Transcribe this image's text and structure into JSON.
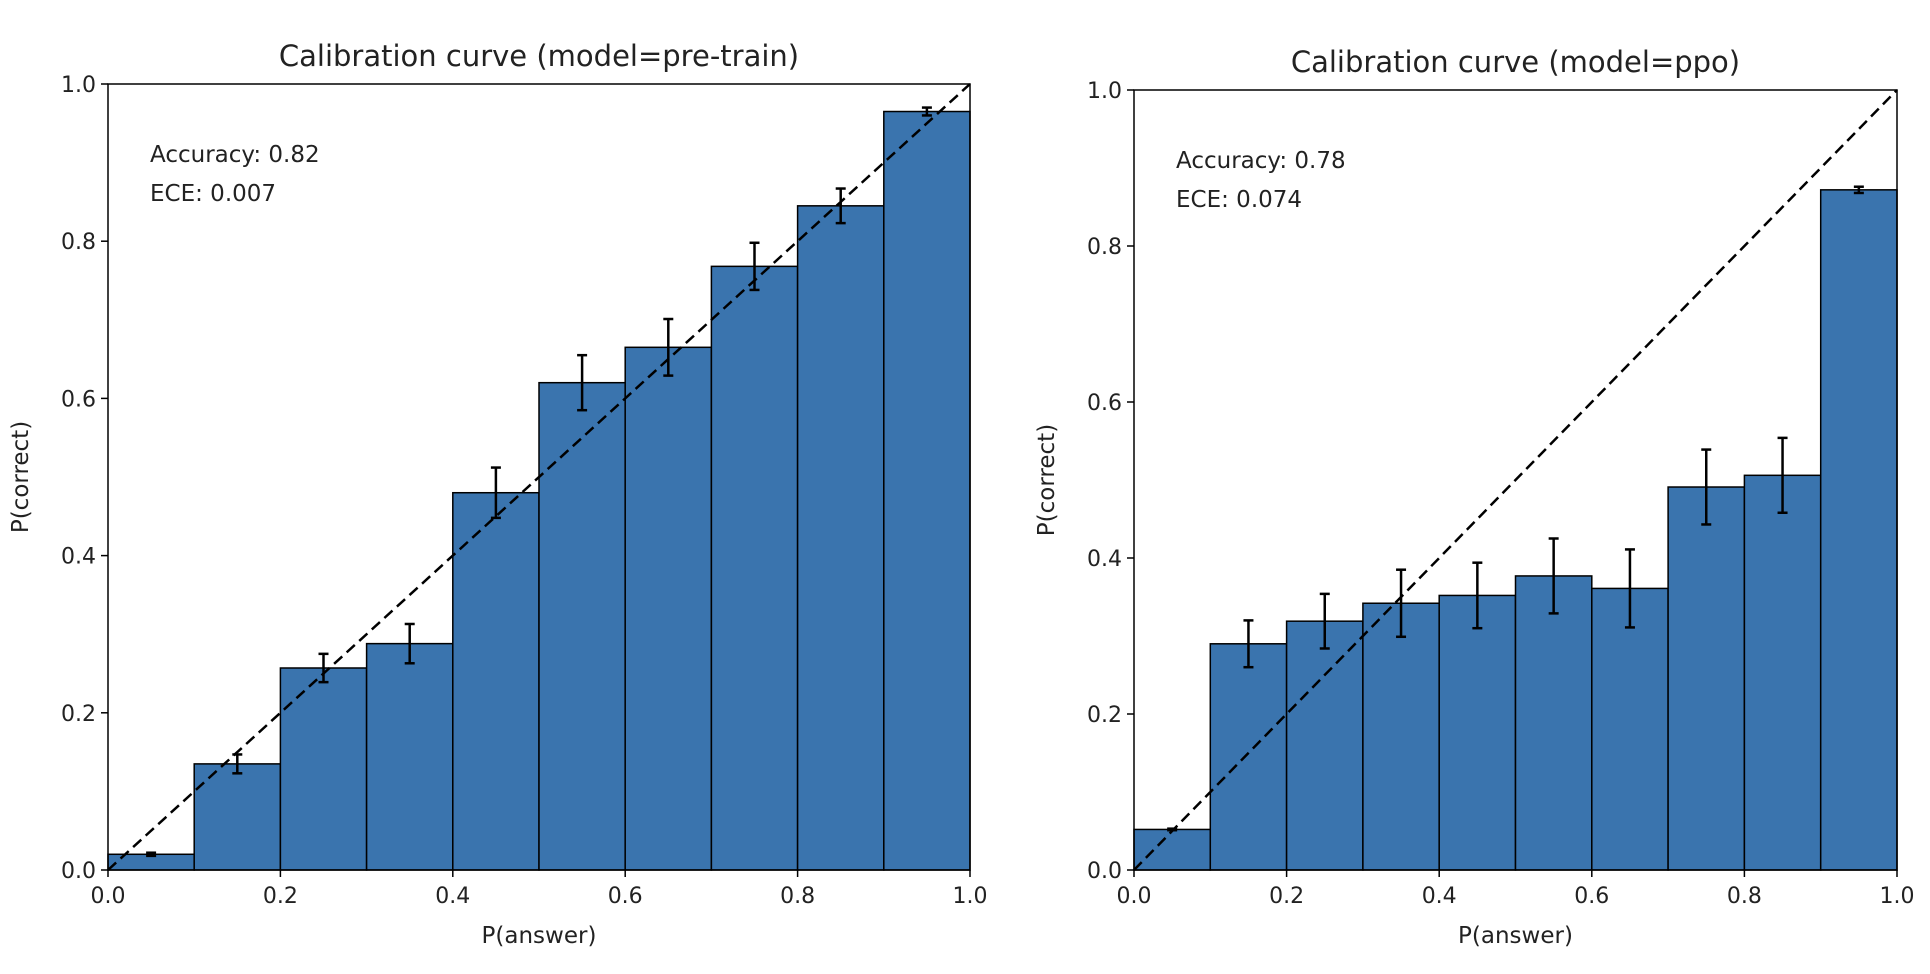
{
  "chart_data": [
    {
      "type": "bar",
      "title": "Calibration curve (model=pre-train)",
      "xlabel": "P(answer)",
      "ylabel": "P(correct)",
      "xlim": [
        0,
        1
      ],
      "ylim": [
        0,
        1
      ],
      "xticks": [
        "0.0",
        "0.2",
        "0.4",
        "0.6",
        "0.8",
        "1.0"
      ],
      "yticks": [
        "0.0",
        "0.2",
        "0.4",
        "0.6",
        "0.8",
        "1.0"
      ],
      "bin_edges": [
        0,
        0.1,
        0.2,
        0.3,
        0.4,
        0.5,
        0.6,
        0.7,
        0.8,
        0.9,
        1.0
      ],
      "values": [
        0.02,
        0.135,
        0.257,
        0.288,
        0.48,
        0.62,
        0.665,
        0.768,
        0.845,
        0.965
      ],
      "errors": [
        0.002,
        0.012,
        0.018,
        0.025,
        0.032,
        0.035,
        0.036,
        0.03,
        0.022,
        0.005
      ],
      "diagonal": true,
      "annotations": [
        "Accuracy: 0.82",
        "ECE: 0.007"
      ],
      "bar_color": "#3a74ae",
      "grid": false
    },
    {
      "type": "bar",
      "title": "Calibration curve (model=ppo)",
      "xlabel": "P(answer)",
      "ylabel": "P(correct)",
      "xlim": [
        0,
        1
      ],
      "ylim": [
        0,
        1
      ],
      "xticks": [
        "0.0",
        "0.2",
        "0.4",
        "0.6",
        "0.8",
        "1.0"
      ],
      "yticks": [
        "0.0",
        "0.2",
        "0.4",
        "0.6",
        "0.8",
        "1.0"
      ],
      "bin_edges": [
        0,
        0.1,
        0.2,
        0.3,
        0.4,
        0.5,
        0.6,
        0.7,
        0.8,
        0.9,
        1.0
      ],
      "values": [
        0.052,
        0.29,
        0.319,
        0.342,
        0.352,
        0.377,
        0.361,
        0.491,
        0.506,
        0.872
      ],
      "errors": [
        0.001,
        0.03,
        0.035,
        0.043,
        0.042,
        0.048,
        0.05,
        0.048,
        0.048,
        0.004
      ],
      "diagonal": true,
      "annotations": [
        "Accuracy: 0.78",
        "ECE: 0.074"
      ],
      "bar_color": "#3a74ae",
      "grid": false
    }
  ]
}
